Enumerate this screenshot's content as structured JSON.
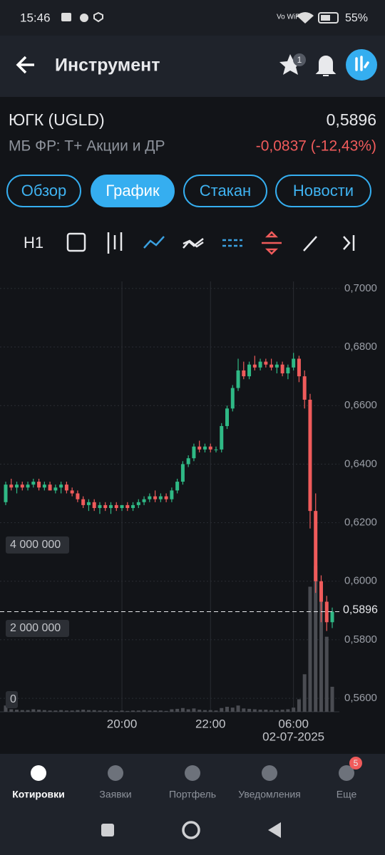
{
  "status_bar": {
    "time": "15:46",
    "network": "Vo WiFi",
    "battery": "55%"
  },
  "header": {
    "title": "Инструмент",
    "favorites_badge": "1"
  },
  "instrument": {
    "name": "ЮГК (UGLD)",
    "price": "0,5896",
    "market": "МБ ФР: Т+ Акции и ДР",
    "change": "-0,0837 (-12,43%)"
  },
  "tabs": [
    "Обзор",
    "График",
    "Стакан",
    "Новости"
  ],
  "active_tab": "График",
  "toolbar": {
    "interval": "H1"
  },
  "chart_data": {
    "type": "candlestick",
    "categories": [
      null,
      null,
      null,
      null,
      null,
      null,
      null,
      null,
      null,
      null,
      null,
      null,
      null,
      null,
      null,
      null,
      null,
      null,
      null,
      null,
      null,
      "20:00",
      null,
      null,
      null,
      null,
      null,
      null,
      null,
      null,
      null,
      null,
      null,
      null,
      null,
      null,
      null,
      "22:00",
      null,
      null,
      null,
      null,
      null,
      null,
      null,
      null,
      null,
      null,
      null,
      null,
      null,
      null,
      "06:00",
      null,
      null,
      null,
      null,
      null,
      null,
      null
    ],
    "date_label": "02-07-2025",
    "open": [
      0.627,
      0.633,
      0.632,
      0.633,
      0.632,
      0.633,
      0.634,
      0.632,
      0.633,
      0.631,
      0.632,
      0.633,
      0.631,
      0.63,
      0.628,
      0.626,
      0.627,
      0.625,
      0.626,
      0.625,
      0.626,
      0.625,
      0.626,
      0.625,
      0.626,
      0.627,
      0.628,
      0.629,
      0.628,
      0.629,
      0.628,
      0.631,
      0.634,
      0.64,
      0.642,
      0.646,
      0.645,
      0.646,
      0.645,
      0.645,
      0.653,
      0.659,
      0.666,
      0.672,
      0.67,
      0.674,
      0.673,
      0.675,
      0.674,
      0.673,
      0.674,
      0.671,
      0.673,
      0.676,
      0.67,
      0.662,
      0.624,
      0.6,
      0.593,
      0.586
    ],
    "high": [
      0.634,
      0.635,
      0.634,
      0.634,
      0.634,
      0.635,
      0.635,
      0.634,
      0.634,
      0.633,
      0.634,
      0.634,
      0.632,
      0.631,
      0.629,
      0.628,
      0.628,
      0.627,
      0.627,
      0.627,
      0.627,
      0.626,
      0.627,
      0.627,
      0.628,
      0.629,
      0.63,
      0.631,
      0.63,
      0.63,
      0.632,
      0.635,
      0.641,
      0.643,
      0.647,
      0.648,
      0.647,
      0.647,
      0.646,
      0.654,
      0.66,
      0.667,
      0.676,
      0.675,
      0.675,
      0.677,
      0.676,
      0.676,
      0.676,
      0.675,
      0.675,
      0.674,
      0.678,
      0.677,
      0.672,
      0.664,
      0.63,
      0.602,
      0.595,
      0.591
    ],
    "low": [
      0.626,
      0.631,
      0.63,
      0.631,
      0.631,
      0.632,
      0.631,
      0.631,
      0.631,
      0.63,
      0.63,
      0.63,
      0.629,
      0.627,
      0.625,
      0.624,
      0.624,
      0.623,
      0.624,
      0.623,
      0.624,
      0.624,
      0.624,
      0.624,
      0.625,
      0.626,
      0.627,
      0.627,
      0.627,
      0.627,
      0.627,
      0.63,
      0.633,
      0.639,
      0.641,
      0.644,
      0.644,
      0.644,
      0.644,
      0.644,
      0.652,
      0.658,
      0.665,
      0.669,
      0.669,
      0.672,
      0.672,
      0.673,
      0.672,
      0.671,
      0.67,
      0.669,
      0.672,
      0.668,
      0.659,
      0.618,
      0.596,
      0.586,
      0.583,
      0.584
    ],
    "close": [
      0.633,
      0.632,
      0.633,
      0.632,
      0.633,
      0.634,
      0.632,
      0.633,
      0.631,
      0.632,
      0.633,
      0.631,
      0.63,
      0.628,
      0.626,
      0.627,
      0.625,
      0.626,
      0.625,
      0.626,
      0.625,
      0.626,
      0.625,
      0.626,
      0.627,
      0.628,
      0.629,
      0.628,
      0.629,
      0.628,
      0.631,
      0.634,
      0.64,
      0.642,
      0.646,
      0.645,
      0.646,
      0.645,
      0.645,
      0.653,
      0.659,
      0.666,
      0.672,
      0.67,
      0.674,
      0.673,
      0.675,
      0.674,
      0.673,
      0.674,
      0.671,
      0.673,
      0.676,
      0.67,
      0.662,
      0.624,
      0.6,
      0.593,
      0.586,
      0.5896
    ],
    "volume": [
      150000,
      60000,
      50000,
      40000,
      40000,
      60000,
      50000,
      40000,
      30000,
      30000,
      40000,
      30000,
      30000,
      40000,
      50000,
      40000,
      40000,
      30000,
      30000,
      30000,
      20000,
      30000,
      20000,
      30000,
      30000,
      40000,
      30000,
      30000,
      30000,
      20000,
      60000,
      70000,
      90000,
      60000,
      80000,
      50000,
      40000,
      40000,
      30000,
      90000,
      120000,
      100000,
      150000,
      80000,
      70000,
      60000,
      50000,
      50000,
      40000,
      40000,
      50000,
      60000,
      100000,
      300000,
      900000,
      3000000,
      3500000,
      2900000,
      1800000,
      600000
    ],
    "up_color": "#2fb985",
    "down_color": "#f05b5b",
    "volume_color": "#4a4c52",
    "ylim": [
      0.5554,
      0.7024
    ],
    "yticks": [
      {
        "value": 0.56,
        "label": "0,5600"
      },
      {
        "value": 0.58,
        "label": "0,5800"
      },
      {
        "value": 0.6,
        "label": "0,6000"
      },
      {
        "value": 0.62,
        "label": "0,6200"
      },
      {
        "value": 0.64,
        "label": "0,6400"
      },
      {
        "value": 0.66,
        "label": "0,6600"
      },
      {
        "value": 0.68,
        "label": "0,6800"
      },
      {
        "value": 0.7,
        "label": "0,7000"
      }
    ],
    "y2lim": [
      0,
      10320000
    ],
    "y2ticks": [
      0,
      {
        "value": 2000000,
        "label": "2 000 000"
      },
      {
        "value": 4000000,
        "label": "4 000 000"
      }
    ],
    "last_price": {
      "value": 0.5896,
      "label": "0,5896"
    },
    "grid": true
  },
  "bottom_nav": {
    "items": [
      "Котировки",
      "Заявки",
      "Портфель",
      "Уведомления",
      "Еще"
    ],
    "badge": "5"
  }
}
